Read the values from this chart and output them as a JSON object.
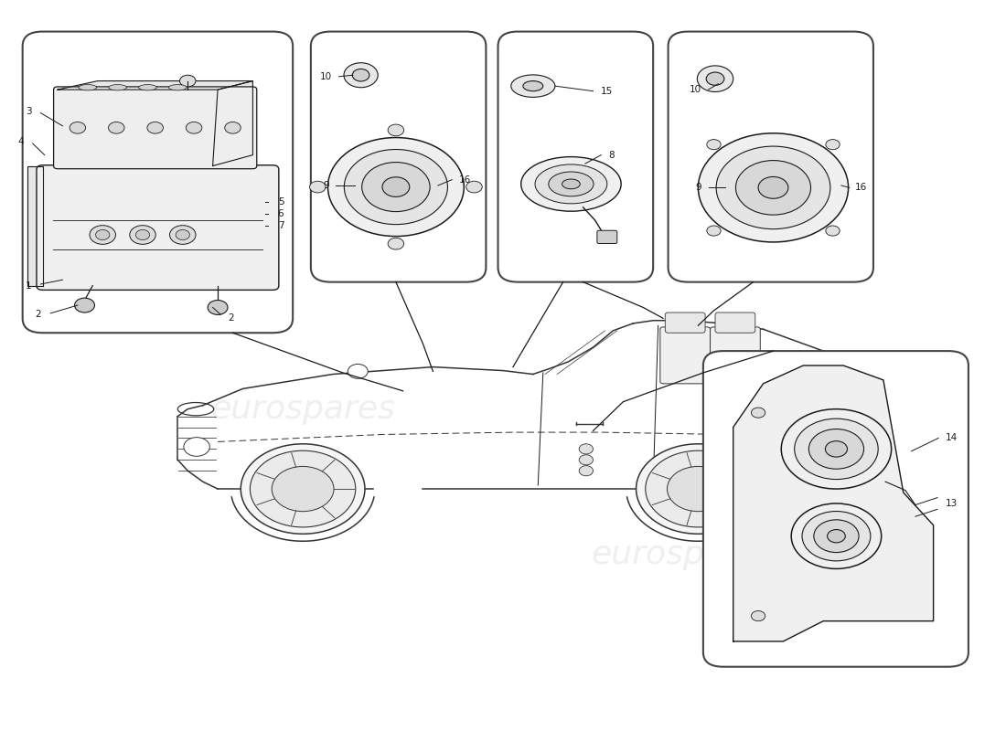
{
  "bg_color": "#ffffff",
  "line_color": "#1a1a1a",
  "box_edge": "#444444",
  "watermark_color": "#cccccc",
  "fig_width": 11.0,
  "fig_height": 8.0,
  "dpi": 100
}
